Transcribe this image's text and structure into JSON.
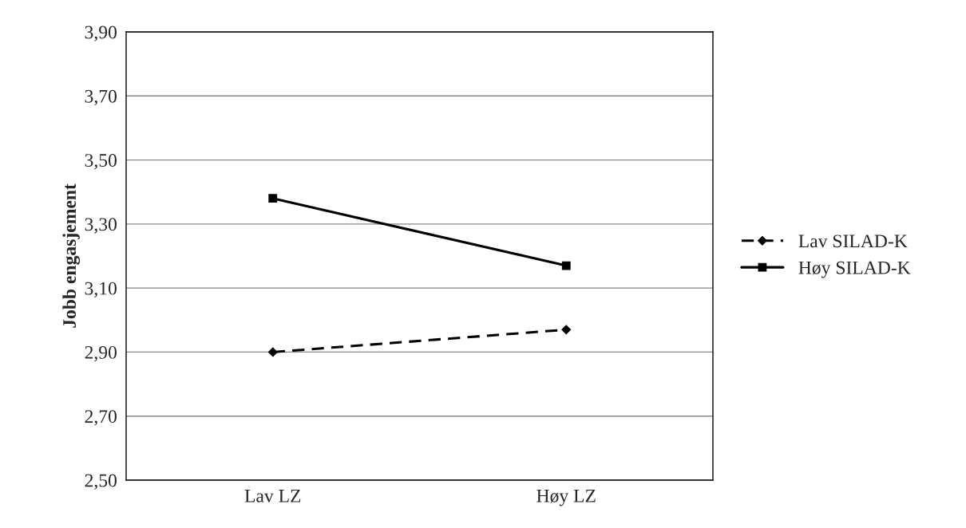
{
  "chart_data": {
    "type": "line",
    "ylabel": "Jobb engasjement",
    "categories": [
      "Lav LZ",
      "Høy LZ"
    ],
    "series": [
      {
        "name": "Lav SILAD-K",
        "color": "#000000",
        "values": [
          2.9,
          2.97
        ],
        "marker": "diamond",
        "line_style": "dashed"
      },
      {
        "name": "Høy SILAD-K",
        "color": "#000000",
        "values": [
          3.38,
          3.17
        ],
        "marker": "square",
        "line_style": "solid"
      }
    ],
    "ylim": [
      2.5,
      3.9
    ],
    "yticks": [
      {
        "value": 2.5,
        "label": "2,50"
      },
      {
        "value": 2.7,
        "label": "2,70"
      },
      {
        "value": 2.9,
        "label": "2,90"
      },
      {
        "value": 3.1,
        "label": "3,10"
      },
      {
        "value": 3.3,
        "label": "3,30"
      },
      {
        "value": 3.5,
        "label": "3,50"
      },
      {
        "value": 3.7,
        "label": "3,70"
      },
      {
        "value": 3.9,
        "label": "3,90"
      }
    ],
    "grid": "y",
    "legend": "right"
  }
}
